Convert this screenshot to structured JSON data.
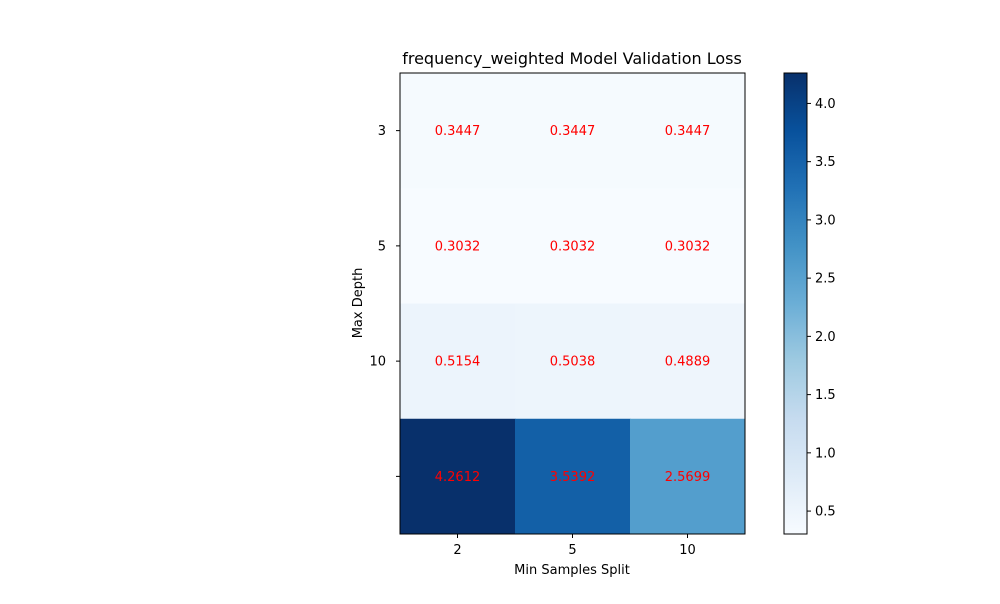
{
  "chart_data": {
    "type": "heatmap",
    "title": "frequency_weighted Model Validation Loss",
    "xlabel": "Min Samples Split",
    "ylabel": "Max Depth",
    "x_categories": [
      "2",
      "5",
      "10"
    ],
    "y_categories": [
      "3",
      "5",
      "10",
      ""
    ],
    "values": [
      [
        0.3447,
        0.3447,
        0.3447
      ],
      [
        0.3032,
        0.3032,
        0.3032
      ],
      [
        0.5154,
        0.5038,
        0.4889
      ],
      [
        4.2612,
        3.5392,
        2.5699
      ]
    ],
    "cell_label_color": "#ff0000",
    "colormap": "Blues",
    "colorbar": {
      "vmin": 0.3032,
      "vmax": 4.2612,
      "ticks": [
        0.5,
        1.0,
        1.5,
        2.0,
        2.5,
        3.0,
        3.5,
        4.0
      ],
      "tick_labels": [
        "0.5",
        "1.0",
        "1.5",
        "2.0",
        "2.5",
        "3.0",
        "3.5",
        "4.0"
      ]
    },
    "grid": false,
    "legend": "none"
  }
}
